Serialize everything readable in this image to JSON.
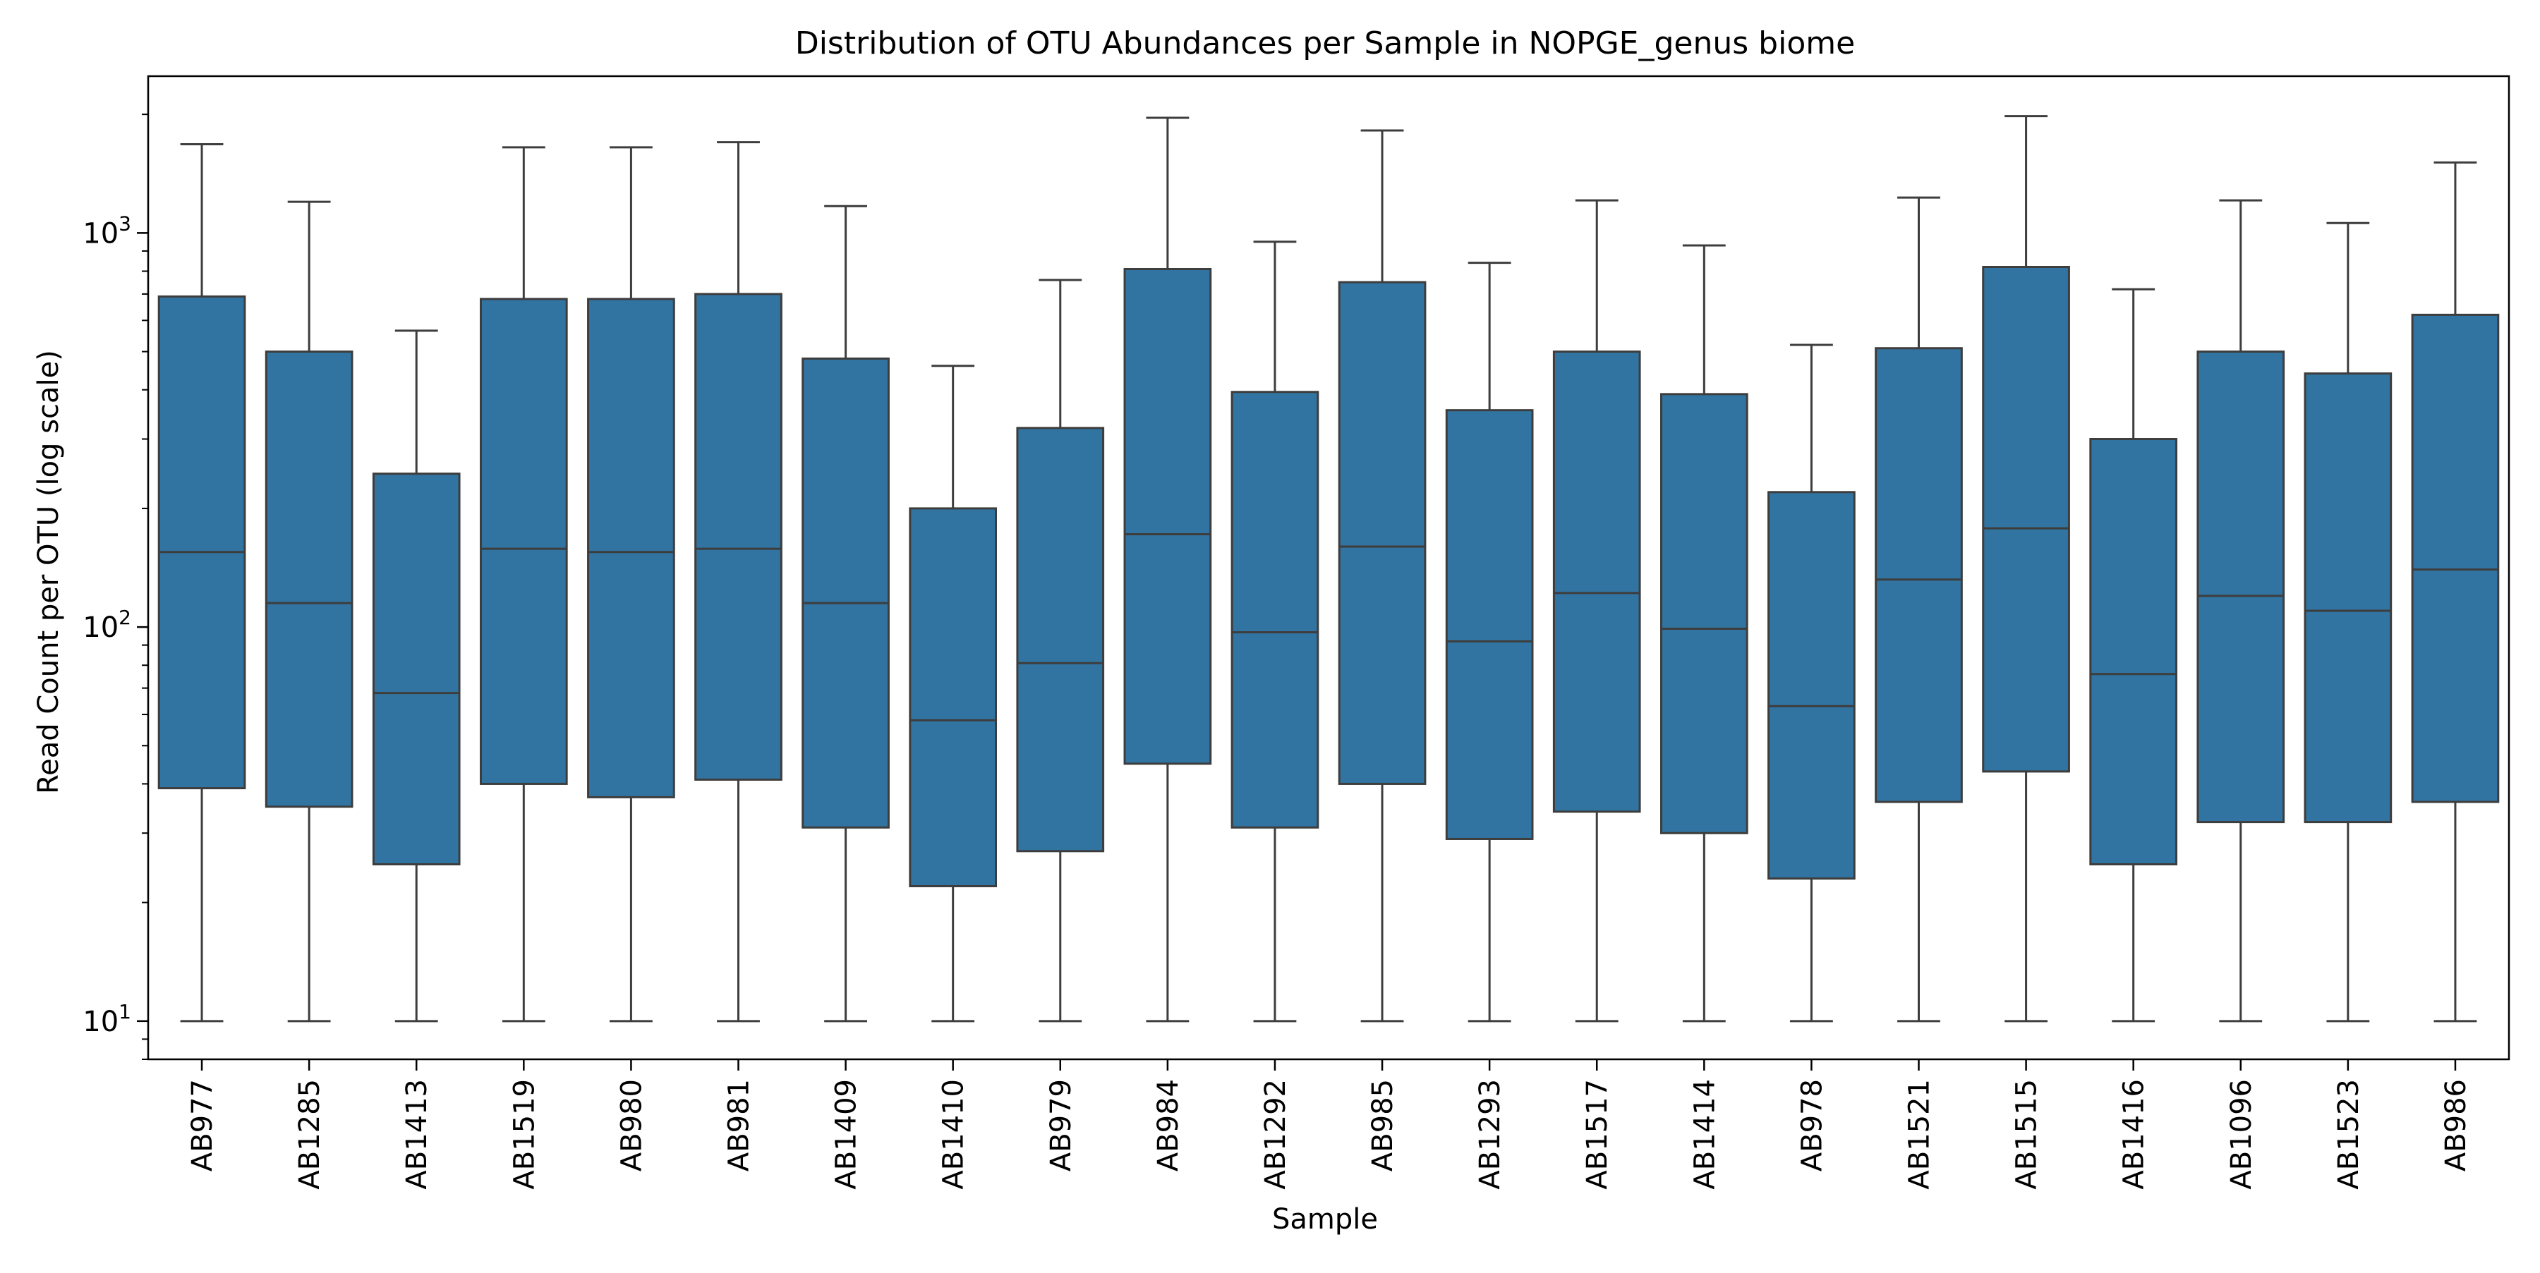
{
  "colors": {
    "box_fill": "#3274a1",
    "line": "#3d3d3d",
    "axis": "#000000",
    "background": "#ffffff"
  },
  "chart_data": {
    "type": "boxplot",
    "title": "Distribution of OTU Abundances per Sample in NOPGE_genus biome",
    "xlabel": "Sample",
    "ylabel": "Read Count per OTU (log scale)",
    "yscale": "log",
    "ylim": [
      8,
      2500
    ],
    "yticks": [
      10,
      100,
      1000
    ],
    "ytick_labels": [
      {
        "base": "10",
        "exp": "1"
      },
      {
        "base": "10",
        "exp": "2"
      },
      {
        "base": "10",
        "exp": "3"
      }
    ],
    "grid": false,
    "legend": "none",
    "categories": [
      "AB977",
      "AB1285",
      "AB1413",
      "AB1519",
      "AB980",
      "AB981",
      "AB1409",
      "AB1410",
      "AB979",
      "AB984",
      "AB1292",
      "AB985",
      "AB1293",
      "AB1517",
      "AB1414",
      "AB978",
      "AB1521",
      "AB1515",
      "AB1416",
      "AB1096",
      "AB1523",
      "AB986"
    ],
    "boxes": [
      {
        "whisker_low": 10,
        "q1": 39,
        "median": 155,
        "q3": 690,
        "whisker_high": 1680
      },
      {
        "whisker_low": 10,
        "q1": 35,
        "median": 115,
        "q3": 500,
        "whisker_high": 1200
      },
      {
        "whisker_low": 10,
        "q1": 25,
        "median": 68,
        "q3": 245,
        "whisker_high": 565
      },
      {
        "whisker_low": 10,
        "q1": 40,
        "median": 158,
        "q3": 680,
        "whisker_high": 1650
      },
      {
        "whisker_low": 10,
        "q1": 37,
        "median": 155,
        "q3": 680,
        "whisker_high": 1650
      },
      {
        "whisker_low": 10,
        "q1": 41,
        "median": 158,
        "q3": 700,
        "whisker_high": 1700
      },
      {
        "whisker_low": 10,
        "q1": 31,
        "median": 115,
        "q3": 480,
        "whisker_high": 1170
      },
      {
        "whisker_low": 10,
        "q1": 22,
        "median": 58,
        "q3": 200,
        "whisker_high": 460
      },
      {
        "whisker_low": 10,
        "q1": 27,
        "median": 81,
        "q3": 320,
        "whisker_high": 760
      },
      {
        "whisker_low": 10,
        "q1": 45,
        "median": 172,
        "q3": 810,
        "whisker_high": 1960
      },
      {
        "whisker_low": 10,
        "q1": 31,
        "median": 97,
        "q3": 395,
        "whisker_high": 950
      },
      {
        "whisker_low": 10,
        "q1": 40,
        "median": 160,
        "q3": 750,
        "whisker_high": 1820
      },
      {
        "whisker_low": 10,
        "q1": 29,
        "median": 92,
        "q3": 355,
        "whisker_high": 840
      },
      {
        "whisker_low": 10,
        "q1": 34,
        "median": 122,
        "q3": 500,
        "whisker_high": 1210
      },
      {
        "whisker_low": 10,
        "q1": 30,
        "median": 99,
        "q3": 390,
        "whisker_high": 930
      },
      {
        "whisker_low": 10,
        "q1": 23,
        "median": 63,
        "q3": 220,
        "whisker_high": 520
      },
      {
        "whisker_low": 10,
        "q1": 36,
        "median": 132,
        "q3": 510,
        "whisker_high": 1230
      },
      {
        "whisker_low": 10,
        "q1": 43,
        "median": 178,
        "q3": 820,
        "whisker_high": 1980
      },
      {
        "whisker_low": 10,
        "q1": 25,
        "median": 76,
        "q3": 300,
        "whisker_high": 720
      },
      {
        "whisker_low": 10,
        "q1": 32,
        "median": 120,
        "q3": 500,
        "whisker_high": 1210
      },
      {
        "whisker_low": 10,
        "q1": 32,
        "median": 110,
        "q3": 440,
        "whisker_high": 1060
      },
      {
        "whisker_low": 10,
        "q1": 36,
        "median": 140,
        "q3": 620,
        "whisker_high": 1510
      }
    ]
  }
}
